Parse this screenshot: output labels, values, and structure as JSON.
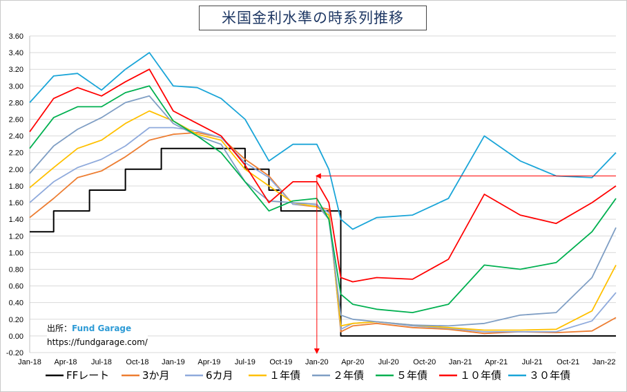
{
  "chart_data": {
    "type": "line",
    "title": "米国金利水準の時系列推移",
    "source_label": "出所：",
    "source_name": "Fund Garage",
    "source_url": "https://fundgarage.com/",
    "ylim": [
      -0.2,
      3.6
    ],
    "y_ticks": [
      "-0.20",
      "0.00",
      "0.20",
      "0.40",
      "0.60",
      "0.80",
      "1.00",
      "1.20",
      "1.40",
      "1.60",
      "1.80",
      "2.00",
      "2.20",
      "2.40",
      "2.60",
      "2.80",
      "3.00",
      "3.20",
      "3.40",
      "3.60"
    ],
    "x_ticks": [
      "Jan-18",
      "Apr-18",
      "Jul-18",
      "Oct-18",
      "Jan-19",
      "Apr-19",
      "Jul-19",
      "Oct-19",
      "Jan-20",
      "Apr-20",
      "Jul-20",
      "Oct-20",
      "Jan-21",
      "Apr-21",
      "Jul-21",
      "Oct-21",
      "Jan-22"
    ],
    "xlim": [
      "2018-01",
      "2022-02"
    ],
    "grid": "horizontal",
    "legend_position": "bottom",
    "series": [
      {
        "name": "FFレート",
        "color": "#000000",
        "step": true,
        "points": [
          [
            "2018-01",
            1.25
          ],
          [
            "2018-03",
            1.25
          ],
          [
            "2018-03",
            1.5
          ],
          [
            "2018-06",
            1.5
          ],
          [
            "2018-06",
            1.75
          ],
          [
            "2018-09",
            1.75
          ],
          [
            "2018-09",
            2.0
          ],
          [
            "2018-12",
            2.0
          ],
          [
            "2018-12",
            2.25
          ],
          [
            "2019-07",
            2.25
          ],
          [
            "2019-07",
            2.0
          ],
          [
            "2019-09",
            2.0
          ],
          [
            "2019-09",
            1.75
          ],
          [
            "2019-10",
            1.75
          ],
          [
            "2019-10",
            1.5
          ],
          [
            "2020-03",
            1.5
          ],
          [
            "2020-03",
            1.0
          ],
          [
            "2020-03",
            0.0
          ],
          [
            "2022-02",
            0.0
          ]
        ]
      },
      {
        "name": "3か月",
        "color": "#ed7d31",
        "points": [
          [
            "2018-01",
            1.42
          ],
          [
            "2018-03",
            1.65
          ],
          [
            "2018-05",
            1.9
          ],
          [
            "2018-07",
            1.98
          ],
          [
            "2018-09",
            2.15
          ],
          [
            "2018-11",
            2.35
          ],
          [
            "2019-01",
            2.42
          ],
          [
            "2019-03",
            2.44
          ],
          [
            "2019-05",
            2.38
          ],
          [
            "2019-07",
            2.12
          ],
          [
            "2019-09",
            1.92
          ],
          [
            "2019-11",
            1.58
          ],
          [
            "2020-01",
            1.55
          ],
          [
            "2020-02",
            1.52
          ],
          [
            "2020-03",
            0.05
          ],
          [
            "2020-04",
            0.12
          ],
          [
            "2020-06",
            0.15
          ],
          [
            "2020-09",
            0.1
          ],
          [
            "2020-12",
            0.08
          ],
          [
            "2021-03",
            0.03
          ],
          [
            "2021-06",
            0.05
          ],
          [
            "2021-09",
            0.04
          ],
          [
            "2021-12",
            0.06
          ],
          [
            "2022-02",
            0.22
          ]
        ]
      },
      {
        "name": "6カ月",
        "color": "#8faadc",
        "points": [
          [
            "2018-01",
            1.6
          ],
          [
            "2018-03",
            1.85
          ],
          [
            "2018-05",
            2.02
          ],
          [
            "2018-07",
            2.12
          ],
          [
            "2018-09",
            2.28
          ],
          [
            "2018-11",
            2.5
          ],
          [
            "2019-01",
            2.5
          ],
          [
            "2019-03",
            2.46
          ],
          [
            "2019-05",
            2.38
          ],
          [
            "2019-07",
            2.08
          ],
          [
            "2019-09",
            1.9
          ],
          [
            "2019-11",
            1.58
          ],
          [
            "2020-01",
            1.56
          ],
          [
            "2020-02",
            1.48
          ],
          [
            "2020-03",
            0.08
          ],
          [
            "2020-04",
            0.15
          ],
          [
            "2020-06",
            0.17
          ],
          [
            "2020-09",
            0.12
          ],
          [
            "2020-12",
            0.09
          ],
          [
            "2021-03",
            0.05
          ],
          [
            "2021-06",
            0.05
          ],
          [
            "2021-09",
            0.05
          ],
          [
            "2021-12",
            0.18
          ],
          [
            "2022-02",
            0.52
          ]
        ]
      },
      {
        "name": "１年債",
        "color": "#ffc000",
        "points": [
          [
            "2018-01",
            1.78
          ],
          [
            "2018-03",
            2.02
          ],
          [
            "2018-05",
            2.25
          ],
          [
            "2018-07",
            2.35
          ],
          [
            "2018-09",
            2.55
          ],
          [
            "2018-11",
            2.7
          ],
          [
            "2019-01",
            2.58
          ],
          [
            "2019-03",
            2.42
          ],
          [
            "2019-05",
            2.35
          ],
          [
            "2019-07",
            2.0
          ],
          [
            "2019-09",
            1.8
          ],
          [
            "2019-11",
            1.6
          ],
          [
            "2020-01",
            1.55
          ],
          [
            "2020-02",
            1.45
          ],
          [
            "2020-03",
            0.12
          ],
          [
            "2020-04",
            0.15
          ],
          [
            "2020-06",
            0.17
          ],
          [
            "2020-09",
            0.13
          ],
          [
            "2020-12",
            0.1
          ],
          [
            "2021-03",
            0.07
          ],
          [
            "2021-06",
            0.07
          ],
          [
            "2021-09",
            0.08
          ],
          [
            "2021-12",
            0.3
          ],
          [
            "2022-02",
            0.85
          ]
        ]
      },
      {
        "name": "２年債",
        "color": "#7f9ec4",
        "points": [
          [
            "2018-01",
            1.95
          ],
          [
            "2018-03",
            2.28
          ],
          [
            "2018-05",
            2.48
          ],
          [
            "2018-07",
            2.62
          ],
          [
            "2018-09",
            2.8
          ],
          [
            "2018-11",
            2.88
          ],
          [
            "2019-01",
            2.55
          ],
          [
            "2019-03",
            2.4
          ],
          [
            "2019-05",
            2.3
          ],
          [
            "2019-07",
            1.85
          ],
          [
            "2019-09",
            1.62
          ],
          [
            "2019-11",
            1.6
          ],
          [
            "2020-01",
            1.58
          ],
          [
            "2020-02",
            1.4
          ],
          [
            "2020-03",
            0.25
          ],
          [
            "2020-04",
            0.2
          ],
          [
            "2020-06",
            0.17
          ],
          [
            "2020-09",
            0.13
          ],
          [
            "2020-12",
            0.12
          ],
          [
            "2021-03",
            0.15
          ],
          [
            "2021-06",
            0.25
          ],
          [
            "2021-09",
            0.28
          ],
          [
            "2021-12",
            0.7
          ],
          [
            "2022-02",
            1.3
          ]
        ]
      },
      {
        "name": "５年債",
        "color": "#00b050",
        "points": [
          [
            "2018-01",
            2.25
          ],
          [
            "2018-03",
            2.62
          ],
          [
            "2018-05",
            2.75
          ],
          [
            "2018-07",
            2.75
          ],
          [
            "2018-09",
            2.92
          ],
          [
            "2018-11",
            3.0
          ],
          [
            "2019-01",
            2.58
          ],
          [
            "2019-03",
            2.4
          ],
          [
            "2019-05",
            2.2
          ],
          [
            "2019-07",
            1.85
          ],
          [
            "2019-09",
            1.5
          ],
          [
            "2019-11",
            1.62
          ],
          [
            "2020-01",
            1.65
          ],
          [
            "2020-02",
            1.4
          ],
          [
            "2020-03",
            0.5
          ],
          [
            "2020-04",
            0.38
          ],
          [
            "2020-06",
            0.32
          ],
          [
            "2020-09",
            0.28
          ],
          [
            "2020-12",
            0.38
          ],
          [
            "2021-03",
            0.85
          ],
          [
            "2021-06",
            0.8
          ],
          [
            "2021-09",
            0.88
          ],
          [
            "2021-12",
            1.25
          ],
          [
            "2022-02",
            1.65
          ]
        ]
      },
      {
        "name": "１０年債",
        "color": "#ff0000",
        "points": [
          [
            "2018-01",
            2.45
          ],
          [
            "2018-03",
            2.85
          ],
          [
            "2018-05",
            2.98
          ],
          [
            "2018-07",
            2.88
          ],
          [
            "2018-09",
            3.05
          ],
          [
            "2018-11",
            3.2
          ],
          [
            "2019-01",
            2.7
          ],
          [
            "2019-03",
            2.55
          ],
          [
            "2019-05",
            2.4
          ],
          [
            "2019-07",
            2.05
          ],
          [
            "2019-09",
            1.6
          ],
          [
            "2019-11",
            1.85
          ],
          [
            "2020-01",
            1.85
          ],
          [
            "2020-02",
            1.6
          ],
          [
            "2020-03",
            0.7
          ],
          [
            "2020-04",
            0.65
          ],
          [
            "2020-06",
            0.7
          ],
          [
            "2020-09",
            0.68
          ],
          [
            "2020-12",
            0.92
          ],
          [
            "2021-03",
            1.7
          ],
          [
            "2021-06",
            1.45
          ],
          [
            "2021-09",
            1.35
          ],
          [
            "2021-12",
            1.6
          ],
          [
            "2022-02",
            1.8
          ]
        ]
      },
      {
        "name": "３０年債",
        "color": "#1aa5d8",
        "points": [
          [
            "2018-01",
            2.8
          ],
          [
            "2018-03",
            3.12
          ],
          [
            "2018-05",
            3.15
          ],
          [
            "2018-07",
            2.95
          ],
          [
            "2018-09",
            3.2
          ],
          [
            "2018-11",
            3.4
          ],
          [
            "2019-01",
            3.0
          ],
          [
            "2019-03",
            2.98
          ],
          [
            "2019-05",
            2.85
          ],
          [
            "2019-07",
            2.6
          ],
          [
            "2019-09",
            2.1
          ],
          [
            "2019-11",
            2.3
          ],
          [
            "2020-01",
            2.3
          ],
          [
            "2020-02",
            2.0
          ],
          [
            "2020-03",
            1.4
          ],
          [
            "2020-04",
            1.28
          ],
          [
            "2020-06",
            1.42
          ],
          [
            "2020-09",
            1.45
          ],
          [
            "2020-12",
            1.65
          ],
          [
            "2021-03",
            2.4
          ],
          [
            "2021-06",
            2.1
          ],
          [
            "2021-09",
            1.92
          ],
          [
            "2021-12",
            1.9
          ],
          [
            "2022-02",
            2.2
          ]
        ]
      }
    ],
    "annotations": [
      {
        "type": "arrow",
        "color": "#ff0000",
        "description": "horizontal arrow from Feb-22 10年債 level to Jan-20 peak",
        "from": [
          "2022-02",
          1.92
        ],
        "to": [
          "2020-01",
          1.92
        ]
      },
      {
        "type": "arrow",
        "color": "#ff0000",
        "description": "vertical arrow down from Jan-20 peak to axis",
        "from": [
          "2020-01",
          1.92
        ],
        "to": [
          "2020-01",
          -0.2
        ]
      }
    ]
  }
}
